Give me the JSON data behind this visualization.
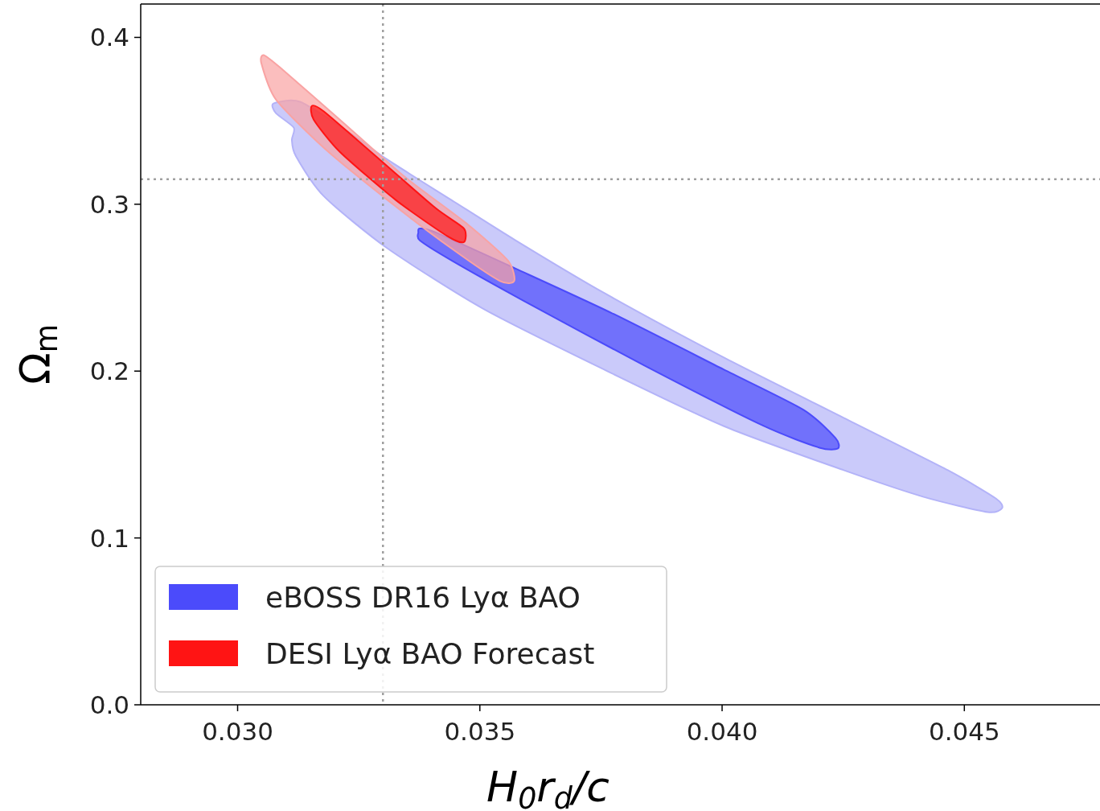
{
  "chart_data": {
    "type": "area",
    "xlabel": "H$_{0}$r$_{d}$/c",
    "ylabel": "Ω$_{m}$",
    "xlim": [
      0.028,
      0.0478
    ],
    "ylim": [
      0,
      0.42
    ],
    "xticks": [
      {
        "value": 0.03,
        "label": "0.030"
      },
      {
        "value": 0.035,
        "label": "0.035"
      },
      {
        "value": 0.04,
        "label": "0.040"
      },
      {
        "value": 0.045,
        "label": "0.045"
      }
    ],
    "yticks": [
      {
        "value": 0,
        "label": "0.0"
      },
      {
        "value": 0.1,
        "label": "0.1"
      },
      {
        "value": 0.2,
        "label": "0.2"
      },
      {
        "value": 0.3,
        "label": "0.3"
      },
      {
        "value": 0.4,
        "label": "0.4"
      }
    ],
    "legend": "bottom left",
    "ref_lines": [
      {
        "axis": "x",
        "value": 0.033,
        "color": "#a0a0a0",
        "line_style": "dotted"
      },
      {
        "axis": "y",
        "value": 0.315,
        "color": "#a0a0a0",
        "line_style": "dotted"
      }
    ],
    "series": [
      {
        "color": "#b3b3f8",
        "x": [
          0.03074,
          0.03129,
          0.03228,
          0.0331,
          0.03442,
          0.03574,
          0.03756,
          0.04003,
          0.04251,
          0.04466,
          0.04565,
          0.04578,
          0.04548,
          0.04416,
          0.04251,
          0.04003,
          0.03756,
          0.03508,
          0.0331,
          0.03178,
          0.0312,
          0.03112,
          0.03116,
          0.03079
        ],
        "values": [
          0.3604,
          0.3614,
          0.3435,
          0.3266,
          0.3024,
          0.2783,
          0.2469,
          0.2082,
          0.172,
          0.1406,
          0.1237,
          0.1179,
          0.1155,
          0.1246,
          0.1406,
          0.1671,
          0.201,
          0.2372,
          0.2734,
          0.3048,
          0.329,
          0.3386,
          0.3459,
          0.3546
        ]
      },
      {
        "name": "eBOSS DR16 Lyα BAO",
        "color": "#4b4bfb",
        "x": [
          0.03376,
          0.03409,
          0.03574,
          0.03772,
          0.04003,
          0.04168,
          0.04234,
          0.04239,
          0.04201,
          0.04086,
          0.03839,
          0.03591,
          0.03442,
          0.03376,
          0.03373
        ],
        "values": [
          0.2855,
          0.2831,
          0.2614,
          0.2348,
          0.201,
          0.1768,
          0.1599,
          0.1536,
          0.1541,
          0.1671,
          0.2034,
          0.242,
          0.2662,
          0.2783,
          0.2831
        ]
      },
      {
        "color": "#f9a3a3",
        "x": [
          0.03054,
          0.03087,
          0.03211,
          0.03343,
          0.03475,
          0.03558,
          0.03571,
          0.03541,
          0.03442,
          0.0331,
          0.03178,
          0.03079,
          0.03049
        ],
        "values": [
          0.3894,
          0.3821,
          0.3507,
          0.3169,
          0.2879,
          0.2662,
          0.2541,
          0.2541,
          0.2734,
          0.3024,
          0.3338,
          0.3628,
          0.3845
        ]
      },
      {
        "name": "DESI Lyα BAO Forecast",
        "color": "#ff1414",
        "x": [
          0.03153,
          0.03178,
          0.03294,
          0.03409,
          0.03467,
          0.03467,
          0.03434,
          0.03327,
          0.03211,
          0.03157
        ],
        "values": [
          0.3589,
          0.3556,
          0.3266,
          0.2976,
          0.2855,
          0.2773,
          0.2807,
          0.3024,
          0.3314,
          0.3507
        ]
      }
    ]
  }
}
